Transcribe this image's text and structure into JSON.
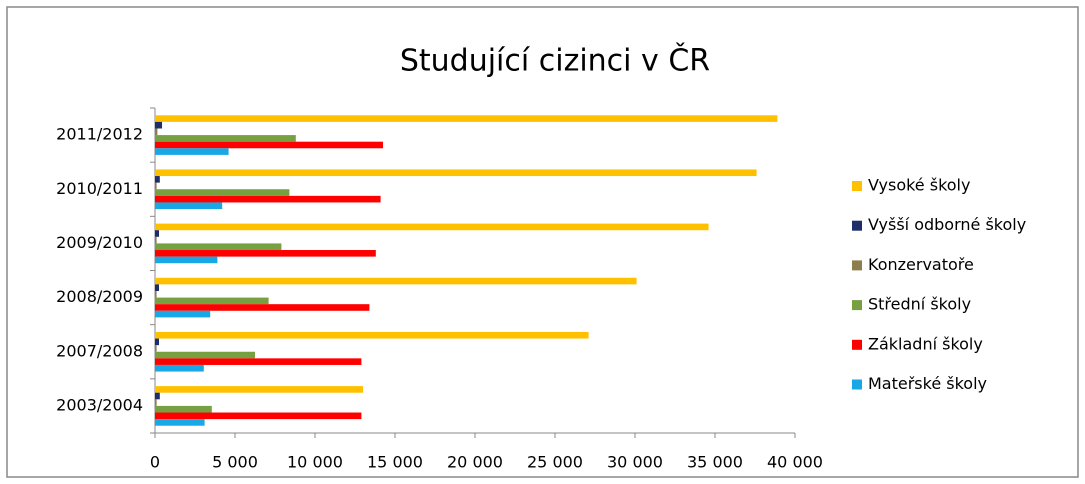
{
  "chart_data": {
    "type": "bar",
    "orientation": "horizontal",
    "title": "Studující cizinci v ČR",
    "categories": [
      "2003/2004",
      "2007/2008",
      "2008/2009",
      "2009/2010",
      "2010/2011",
      "2011/2012"
    ],
    "series": [
      {
        "name": "Vysoké školy",
        "color": "#ffc000",
        "values": [
          13000,
          27100,
          30100,
          34600,
          37600,
          38900
        ]
      },
      {
        "name": "Vyšší odborné školy",
        "color": "#1f2d6b",
        "values": [
          300,
          250,
          250,
          250,
          300,
          440
        ]
      },
      {
        "name": "Konzervatoře",
        "color": "#8c7f4d",
        "values": [
          100,
          100,
          100,
          100,
          100,
          150
        ]
      },
      {
        "name": "Střední školy",
        "color": "#77a040",
        "values": [
          3550,
          6250,
          7100,
          7900,
          8400,
          8800
        ]
      },
      {
        "name": "Základní školy",
        "color": "#ff0000",
        "values": [
          12900,
          12900,
          13400,
          13800,
          14100,
          14250
        ]
      },
      {
        "name": "Mateřské školy",
        "color": "#1aa7e6",
        "values": [
          3100,
          3050,
          3450,
          3900,
          4200,
          4600
        ]
      }
    ],
    "xlim": [
      0,
      40000
    ],
    "xticks": [
      0,
      {
        "value": 5000,
        "label": "5 000"
      },
      {
        "value": 10000,
        "label": "10 000"
      },
      {
        "value": 15000,
        "label": "15 000"
      },
      {
        "value": 20000,
        "label": "20 000"
      },
      {
        "value": 25000,
        "label": "25 000"
      },
      {
        "value": 30000,
        "label": "30 000"
      },
      {
        "value": 35000,
        "label": "35 000"
      },
      {
        "value": 40000,
        "label": "40 000"
      }
    ],
    "legend": "right",
    "grid": false
  }
}
